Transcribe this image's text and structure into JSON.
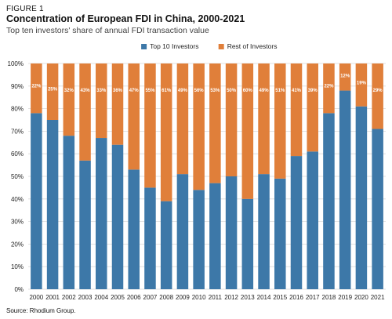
{
  "figure": {
    "label": "FIGURE 1",
    "title": "Concentration of European FDI in China, 2000-2021",
    "subtitle": "Top ten investors' share of annual FDI transaction value",
    "source": "Source: Rhodium Group."
  },
  "chart_data": {
    "type": "bar",
    "stacked": true,
    "percent": true,
    "categories": [
      "2000",
      "2001",
      "2002",
      "2003",
      "2004",
      "2005",
      "2006",
      "2007",
      "2008",
      "2009",
      "2010",
      "2011",
      "2012",
      "2013",
      "2014",
      "2015",
      "2016",
      "2017",
      "2018",
      "2019",
      "2020",
      "2021"
    ],
    "series": [
      {
        "name": "Top 10 Investors",
        "color": "#3d78a8",
        "values": [
          78,
          75,
          68,
          57,
          67,
          64,
          53,
          45,
          39,
          51,
          44,
          47,
          50,
          40,
          51,
          49,
          59,
          61,
          78,
          88,
          81,
          71
        ]
      },
      {
        "name": "Rest of Investors",
        "color": "#e07f3a",
        "values": [
          22,
          25,
          32,
          43,
          33,
          36,
          47,
          55,
          61,
          49,
          56,
          53,
          50,
          60,
          49,
          51,
          41,
          39,
          22,
          12,
          19,
          29
        ],
        "data_labels": [
          "22%",
          "25%",
          "32%",
          "43%",
          "33%",
          "36%",
          "47%",
          "55%",
          "61%",
          "49%",
          "56%",
          "53%",
          "50%",
          "60%",
          "49%",
          "51%",
          "41%",
          "39%",
          "22%",
          "12%",
          "19%",
          "29%"
        ]
      }
    ],
    "ylim": [
      0,
      100
    ],
    "yticks": [
      "0%",
      "10%",
      "20%",
      "30%",
      "40%",
      "50%",
      "60%",
      "70%",
      "80%",
      "90%",
      "100%"
    ],
    "grid": true,
    "legend_position": "top-center",
    "xlabel": "",
    "ylabel": ""
  }
}
